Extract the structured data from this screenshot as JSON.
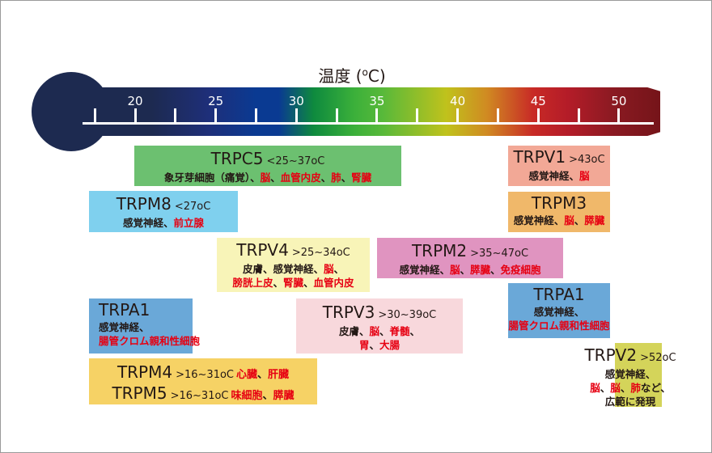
{
  "title": {
    "prefix": "温度 (",
    "degree": "o",
    "suffix": "C)"
  },
  "scale": {
    "min": 17.5,
    "max": 52,
    "labels": [
      "20",
      "25",
      "30",
      "35",
      "40",
      "45",
      "50"
    ],
    "label_values": [
      20,
      25,
      30,
      35,
      40,
      45,
      50
    ],
    "minor_values": [
      17.5,
      22.5,
      27.5,
      32.5,
      37.5,
      42.5,
      47.5
    ]
  },
  "colors": {
    "red": "#e60012",
    "bulb": "#1d2a50"
  },
  "boxes": [
    {
      "id": "trpc5",
      "color": "#6cc070",
      "headers": [
        {
          "name": "TRPC5",
          "temp": "<25~37oC"
        }
      ],
      "lines": [
        [
          {
            "t": "象牙芽細胞（痛覚）、",
            "r": false
          },
          {
            "t": "脳",
            "r": true
          },
          {
            "t": "、",
            "r": false
          },
          {
            "t": "血管内皮",
            "r": true
          },
          {
            "t": "、",
            "r": false
          },
          {
            "t": "肺",
            "r": true
          },
          {
            "t": "、",
            "r": false
          },
          {
            "t": "腎臓",
            "r": true
          }
        ]
      ]
    },
    {
      "id": "trpm8",
      "color": "#7fd0ee",
      "headers": [
        {
          "name": "TRPM8",
          "temp": "<27oC"
        }
      ],
      "lines": [
        [
          {
            "t": "感覚神経、",
            "r": false
          },
          {
            "t": "前立腺",
            "r": true
          }
        ]
      ]
    },
    {
      "id": "trpv4",
      "color": "#f8f4b8",
      "headers": [
        {
          "name": "TRPV4",
          "temp": ">25~34oC"
        }
      ],
      "lines": [
        [
          {
            "t": "皮膚、感覚神経、",
            "r": false
          },
          {
            "t": "脳",
            "r": true
          },
          {
            "t": "、",
            "r": false
          }
        ],
        [
          {
            "t": "膀胱上皮",
            "r": true
          },
          {
            "t": "、",
            "r": false
          },
          {
            "t": "腎臓",
            "r": true
          },
          {
            "t": "、",
            "r": false
          },
          {
            "t": "血管内皮",
            "r": true
          }
        ]
      ]
    },
    {
      "id": "trpm2",
      "color": "#e094c0",
      "headers": [
        {
          "name": "TRPM2",
          "temp": ">35~47oC"
        }
      ],
      "lines": [
        [
          {
            "t": "感覚神経、",
            "r": false
          },
          {
            "t": "脳",
            "r": true
          },
          {
            "t": "、",
            "r": false
          },
          {
            "t": "膵臓",
            "r": true
          },
          {
            "t": "、",
            "r": false
          },
          {
            "t": "免疫細胞",
            "r": true
          }
        ]
      ]
    },
    {
      "id": "trpa1-left",
      "color": "#6aa8d8",
      "headers": [
        {
          "name": "TRPA1",
          "temp": ""
        }
      ],
      "lines": [
        [
          {
            "t": "感覚神経、",
            "r": false
          }
        ],
        [
          {
            "t": "腸管クロム親和性細胞",
            "r": true
          }
        ]
      ]
    },
    {
      "id": "trpv3",
      "color": "#f8d8dc",
      "headers": [
        {
          "name": "TRPV3",
          "temp": ">30~39oC"
        }
      ],
      "lines": [
        [
          {
            "t": "皮膚、",
            "r": false
          },
          {
            "t": "脳",
            "r": true
          },
          {
            "t": "、",
            "r": false
          },
          {
            "t": "脊髄",
            "r": true
          },
          {
            "t": "、",
            "r": false
          }
        ],
        [
          {
            "t": "胃",
            "r": true
          },
          {
            "t": "、",
            "r": false
          },
          {
            "t": "大腸",
            "r": true
          }
        ]
      ]
    },
    {
      "id": "trpm4-5",
      "color": "#f6d265",
      "headers": [
        {
          "name": "TRPM4",
          "temp": ">16~31oC",
          "organs": [
            {
              "t": "心臓",
              "r": true
            },
            {
              "t": "、",
              "r": false
            },
            {
              "t": "肝臓",
              "r": true
            }
          ]
        },
        {
          "name": "TRPM5",
          "temp": ">16~31oC",
          "organs": [
            {
              "t": "味細胞",
              "r": true
            },
            {
              "t": "、",
              "r": false
            },
            {
              "t": "膵臓",
              "r": true
            }
          ]
        }
      ],
      "lines": []
    },
    {
      "id": "trpv1",
      "color": "#f2a896",
      "headers": [
        {
          "name": "TRPV1",
          "temp": ">43oC"
        }
      ],
      "lines": [
        [
          {
            "t": "感覚神経、",
            "r": false
          },
          {
            "t": "脳",
            "r": true
          }
        ]
      ]
    },
    {
      "id": "trpm3",
      "color": "#f0b86a",
      "headers": [
        {
          "name": "TRPM3",
          "temp": ""
        }
      ],
      "lines": [
        [
          {
            "t": "感覚神経、",
            "r": false
          },
          {
            "t": "脳",
            "r": true
          },
          {
            "t": "、",
            "r": false
          },
          {
            "t": "膵臓",
            "r": true
          }
        ]
      ]
    },
    {
      "id": "trpa1-right",
      "color": "#6aa8d8",
      "headers": [
        {
          "name": "TRPA1",
          "temp": ""
        }
      ],
      "lines": [
        [
          {
            "t": "感覚神経、",
            "r": false
          }
        ],
        [
          {
            "t": "腸管クロム親和性細胞",
            "r": true
          }
        ]
      ]
    },
    {
      "id": "trpv2",
      "color": "#d4d45a",
      "headers": [
        {
          "name": "TRPV2",
          "temp": ">52oC"
        }
      ],
      "lines": [
        [
          {
            "t": "感覚神経、",
            "r": false
          }
        ],
        [
          {
            "t": "脳",
            "r": true
          },
          {
            "t": "、",
            "r": false
          },
          {
            "t": "脳",
            "r": true
          },
          {
            "t": "、",
            "r": false
          },
          {
            "t": "肺",
            "r": true
          },
          {
            "t": "など、",
            "r": false
          }
        ],
        [
          {
            "t": "広範に発現",
            "r": false
          }
        ]
      ]
    }
  ]
}
